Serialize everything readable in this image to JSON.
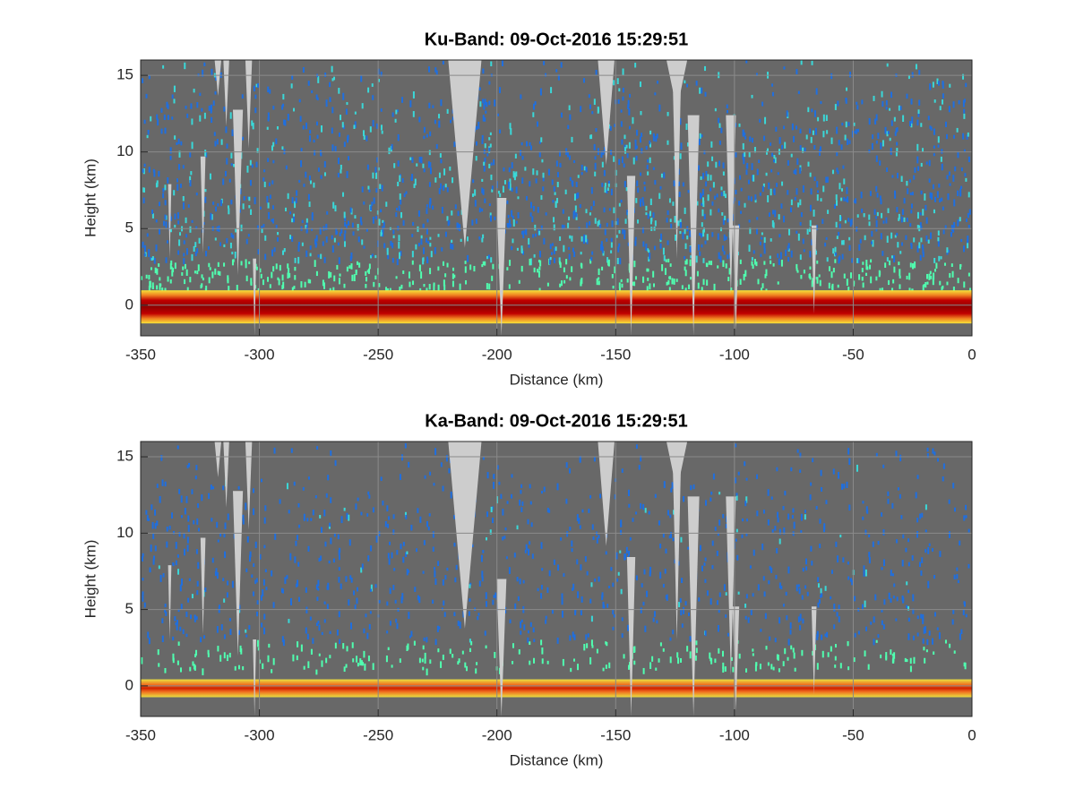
{
  "chart_data": [
    {
      "type": "heatmap",
      "title": "Ku-Band: 09-Oct-2016 15:29:51",
      "xlabel": "Distance (km)",
      "ylabel": "Height (km)",
      "xlim": [
        -350,
        0
      ],
      "ylim": [
        -2,
        16
      ],
      "xticks": [
        -350,
        -300,
        -250,
        -200,
        -150,
        -100,
        -50,
        0
      ],
      "yticks": [
        0,
        5,
        10,
        15
      ],
      "grid": true
    },
    {
      "type": "heatmap",
      "title": "Ka-Band: 09-Oct-2016 15:29:51",
      "xlabel": "Distance (km)",
      "ylabel": "Height (km)",
      "xlim": [
        -350,
        0
      ],
      "ylim": [
        -2,
        16
      ],
      "xticks": [
        -350,
        -300,
        -250,
        -200,
        -150,
        -100,
        -50,
        0
      ],
      "yticks": [
        0,
        5,
        10,
        15
      ],
      "grid": true
    }
  ]
}
